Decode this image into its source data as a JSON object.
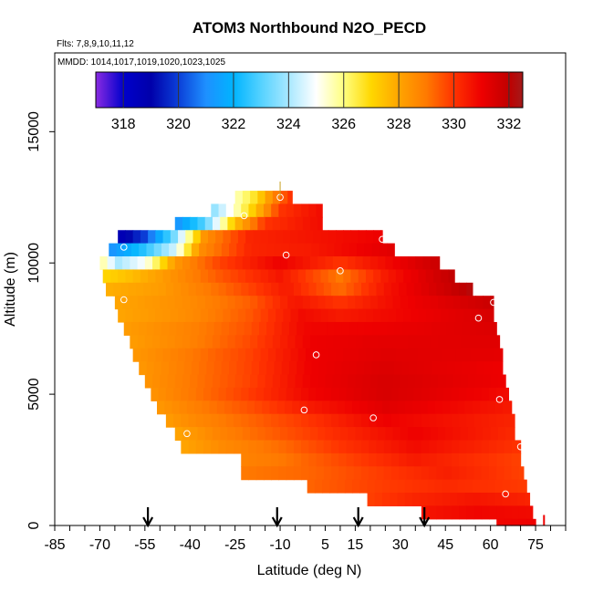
{
  "chart_data": {
    "type": "heatmap",
    "title": "ATOM3 Northbound N2O_PECD",
    "subtitle_flights": "Flts: 7,8,9,10,11,12",
    "subtitle_dates": "MMDD: 1014,1017,1019,1020,1023,1025",
    "xlabel": "Latitude (deg N)",
    "ylabel": "Altitude (m)",
    "xlim": [
      -85,
      85
    ],
    "ylim": [
      0,
      18000
    ],
    "x_ticks": [
      "-85",
      "-70",
      "-55",
      "-40",
      "-25",
      "-10",
      "5",
      "15",
      "30",
      "45",
      "60",
      "75"
    ],
    "x_tick_values": [
      -85,
      -70,
      -55,
      -40,
      -25,
      -10,
      5,
      15,
      30,
      45,
      60,
      75
    ],
    "x_minor_step": 5,
    "y_ticks": [
      "0",
      "5000",
      "10000",
      "15000"
    ],
    "y_tick_values": [
      0,
      5000,
      10000,
      15000
    ],
    "colorbar": {
      "range": [
        317,
        332.5
      ],
      "labels": [
        "318",
        "320",
        "322",
        "324",
        "326",
        "328",
        "330",
        "332"
      ],
      "label_values": [
        318,
        320,
        322,
        324,
        326,
        328,
        330,
        332
      ],
      "stops": [
        {
          "v": 317.0,
          "c": "#8a2be2"
        },
        {
          "v": 318.0,
          "c": "#0000cc"
        },
        {
          "v": 319.0,
          "c": "#0000aa"
        },
        {
          "v": 320.0,
          "c": "#0b3fd8"
        },
        {
          "v": 321.0,
          "c": "#1e90ff"
        },
        {
          "v": 322.0,
          "c": "#00b4ff"
        },
        {
          "v": 323.0,
          "c": "#55d2ff"
        },
        {
          "v": 324.0,
          "c": "#a8e8ff"
        },
        {
          "v": 325.0,
          "c": "#ffffff"
        },
        {
          "v": 326.0,
          "c": "#ffff80"
        },
        {
          "v": 327.0,
          "c": "#ffd700"
        },
        {
          "v": 328.0,
          "c": "#ffa500"
        },
        {
          "v": 329.0,
          "c": "#ff7a00"
        },
        {
          "v": 330.0,
          "c": "#ff3300"
        },
        {
          "v": 331.0,
          "c": "#ee0000"
        },
        {
          "v": 332.0,
          "c": "#c00000"
        },
        {
          "v": 332.5,
          "c": "#a31a1a"
        }
      ]
    },
    "marker_latitudes": [
      -54,
      -11,
      16,
      38
    ],
    "sample_points": [
      {
        "lat": -62,
        "alt": 10600
      },
      {
        "lat": -62,
        "alt": 8600
      },
      {
        "lat": -41,
        "alt": 3500
      },
      {
        "lat": -22,
        "alt": 11800
      },
      {
        "lat": -10,
        "alt": 12500
      },
      {
        "lat": -8,
        "alt": 10300
      },
      {
        "lat": -2,
        "alt": 4400
      },
      {
        "lat": 2,
        "alt": 6500
      },
      {
        "lat": 10,
        "alt": 9700
      },
      {
        "lat": 21,
        "alt": 4100
      },
      {
        "lat": 24,
        "alt": 10900
      },
      {
        "lat": 56,
        "alt": 7900
      },
      {
        "lat": 61,
        "alt": 8500
      },
      {
        "lat": 63,
        "alt": 4800
      },
      {
        "lat": 65,
        "alt": 1200
      },
      {
        "lat": 70,
        "alt": 3000
      }
    ],
    "curtain_rows": [
      {
        "alt_lo": 12250,
        "alt_hi": 12750,
        "lat_lo": -25,
        "lat_hi": -6,
        "profile": [
          [
            -25,
            325.5
          ],
          [
            -18,
            326.8
          ],
          [
            -12,
            328.8
          ],
          [
            -6,
            330.2
          ]
        ]
      },
      {
        "alt_lo": 11750,
        "alt_hi": 12250,
        "lat_lo": -33,
        "lat_hi": 4,
        "profile": [
          [
            -33,
            323.5
          ],
          [
            -26,
            325.2
          ],
          [
            -18,
            327.5
          ],
          [
            -10,
            330.0
          ],
          [
            4,
            330.8
          ]
        ]
      },
      {
        "alt_lo": 11250,
        "alt_hi": 11750,
        "lat_lo": -45,
        "lat_hi": 4,
        "profile": [
          [
            -45,
            321.0
          ],
          [
            -35,
            323.0
          ],
          [
            -25,
            327.5
          ],
          [
            -15,
            330.0
          ],
          [
            4,
            330.8
          ]
        ]
      },
      {
        "alt_lo": 10750,
        "alt_hi": 11250,
        "lat_lo": -64,
        "lat_hi": 24,
        "profile": [
          [
            -64,
            318.5
          ],
          [
            -55,
            320.0
          ],
          [
            -45,
            323.5
          ],
          [
            -35,
            328.5
          ],
          [
            -20,
            330.3
          ],
          [
            24,
            331.0
          ]
        ]
      },
      {
        "alt_lo": 10250,
        "alt_hi": 10750,
        "lat_lo": -67,
        "lat_hi": 28,
        "profile": [
          [
            -67,
            321.0
          ],
          [
            -55,
            322.5
          ],
          [
            -45,
            324.5
          ],
          [
            -37,
            328.5
          ],
          [
            -20,
            330.3
          ],
          [
            0,
            330.5
          ],
          [
            28,
            331.3
          ]
        ]
      },
      {
        "alt_lo": 9750,
        "alt_hi": 10250,
        "lat_lo": -70,
        "lat_hi": 43,
        "profile": [
          [
            -70,
            326.0
          ],
          [
            -64,
            324.0
          ],
          [
            -55,
            325.0
          ],
          [
            -45,
            328.3
          ],
          [
            -30,
            329.8
          ],
          [
            -10,
            331.0
          ],
          [
            10,
            330.0
          ],
          [
            25,
            330.8
          ],
          [
            43,
            331.8
          ]
        ]
      },
      {
        "alt_lo": 9250,
        "alt_hi": 9750,
        "lat_lo": -69,
        "lat_hi": 48,
        "profile": [
          [
            -69,
            327.0
          ],
          [
            -60,
            327.5
          ],
          [
            -45,
            328.5
          ],
          [
            -30,
            329.5
          ],
          [
            -10,
            330.6
          ],
          [
            10,
            329.0
          ],
          [
            25,
            330.5
          ],
          [
            48,
            332.0
          ]
        ]
      },
      {
        "alt_lo": 8750,
        "alt_hi": 9250,
        "lat_lo": -68,
        "lat_hi": 54,
        "profile": [
          [
            -68,
            327.8
          ],
          [
            -50,
            328.2
          ],
          [
            -30,
            329.2
          ],
          [
            -8,
            330.5
          ],
          [
            10,
            329.2
          ],
          [
            25,
            330.6
          ],
          [
            54,
            332.2
          ]
        ]
      },
      {
        "alt_lo": 8250,
        "alt_hi": 8750,
        "lat_lo": -65,
        "lat_hi": 61,
        "profile": [
          [
            -65,
            328.0
          ],
          [
            -40,
            328.6
          ],
          [
            -20,
            329.4
          ],
          [
            -5,
            330.6
          ],
          [
            10,
            330.0
          ],
          [
            30,
            330.9
          ],
          [
            61,
            331.8
          ]
        ]
      },
      {
        "alt_lo": 7750,
        "alt_hi": 8250,
        "lat_lo": -64,
        "lat_hi": 61,
        "profile": [
          [
            -64,
            328.0
          ],
          [
            -40,
            328.6
          ],
          [
            -20,
            329.5
          ],
          [
            -3,
            330.8
          ],
          [
            10,
            330.5
          ],
          [
            35,
            331.0
          ],
          [
            61,
            331.5
          ]
        ]
      },
      {
        "alt_lo": 7250,
        "alt_hi": 7750,
        "lat_lo": -62,
        "lat_hi": 62,
        "profile": [
          [
            -62,
            328.2
          ],
          [
            -40,
            328.8
          ],
          [
            -20,
            329.6
          ],
          [
            -2,
            330.9
          ],
          [
            20,
            331.0
          ],
          [
            62,
            331.4
          ]
        ]
      },
      {
        "alt_lo": 6750,
        "alt_hi": 7250,
        "lat_lo": -60,
        "lat_hi": 63,
        "profile": [
          [
            -60,
            328.2
          ],
          [
            -40,
            328.8
          ],
          [
            -20,
            329.7
          ],
          [
            0,
            331.0
          ],
          [
            20,
            331.2
          ],
          [
            63,
            331.3
          ]
        ]
      },
      {
        "alt_lo": 6250,
        "alt_hi": 6750,
        "lat_lo": -59,
        "lat_hi": 64,
        "profile": [
          [
            -59,
            328.3
          ],
          [
            -40,
            329.0
          ],
          [
            -20,
            329.8
          ],
          [
            0,
            331.0
          ],
          [
            25,
            331.3
          ],
          [
            64,
            331.2
          ]
        ]
      },
      {
        "alt_lo": 5750,
        "alt_hi": 6250,
        "lat_lo": -57,
        "lat_hi": 64,
        "profile": [
          [
            -57,
            328.3
          ],
          [
            -40,
            329.0
          ],
          [
            -20,
            329.8
          ],
          [
            0,
            331.0
          ],
          [
            25,
            331.4
          ],
          [
            64,
            331.0
          ]
        ]
      },
      {
        "alt_lo": 5250,
        "alt_hi": 5750,
        "lat_lo": -55,
        "lat_hi": 65,
        "profile": [
          [
            -55,
            328.4
          ],
          [
            -40,
            329.0
          ],
          [
            -20,
            329.8
          ],
          [
            0,
            331.0
          ],
          [
            25,
            331.5
          ],
          [
            65,
            331.0
          ]
        ]
      },
      {
        "alt_lo": 4750,
        "alt_hi": 5250,
        "lat_lo": -53,
        "lat_hi": 66,
        "profile": [
          [
            -53,
            328.4
          ],
          [
            -40,
            329.0
          ],
          [
            -20,
            329.9
          ],
          [
            0,
            330.9
          ],
          [
            25,
            331.5
          ],
          [
            66,
            330.8
          ]
        ]
      },
      {
        "alt_lo": 4250,
        "alt_hi": 4750,
        "lat_lo": -51,
        "lat_hi": 67,
        "profile": [
          [
            -51,
            328.3
          ],
          [
            -40,
            328.8
          ],
          [
            -20,
            329.6
          ],
          [
            0,
            330.5
          ],
          [
            25,
            331.3
          ],
          [
            67,
            330.5
          ]
        ]
      },
      {
        "alt_lo": 3750,
        "alt_hi": 4250,
        "lat_lo": -48,
        "lat_hi": 68,
        "profile": [
          [
            -48,
            328.2
          ],
          [
            -40,
            328.6
          ],
          [
            -20,
            329.3
          ],
          [
            0,
            330.0
          ],
          [
            25,
            331.0
          ],
          [
            68,
            330.3
          ]
        ]
      },
      {
        "alt_lo": 3250,
        "alt_hi": 3750,
        "lat_lo": -45,
        "lat_hi": 68,
        "profile": [
          [
            -45,
            328.0
          ],
          [
            -30,
            328.8
          ],
          [
            -10,
            329.5
          ],
          [
            10,
            330.2
          ],
          [
            35,
            331.0
          ],
          [
            68,
            330.2
          ]
        ]
      },
      {
        "alt_lo": 2750,
        "alt_hi": 3250,
        "lat_lo": -43,
        "lat_hi": 70,
        "profile": [
          [
            -43,
            328.0
          ],
          [
            -30,
            328.6
          ],
          [
            -10,
            329.2
          ],
          [
            10,
            330.0
          ],
          [
            35,
            330.8
          ],
          [
            70,
            330.0
          ]
        ]
      },
      {
        "alt_lo": 2250,
        "alt_hi": 2750,
        "lat_lo": -23,
        "lat_hi": 70,
        "profile": [
          [
            -23,
            328.8
          ],
          [
            -10,
            329.0
          ],
          [
            10,
            329.7
          ],
          [
            35,
            330.5
          ],
          [
            70,
            329.8
          ]
        ]
      },
      {
        "alt_lo": 1750,
        "alt_hi": 2250,
        "lat_lo": -23,
        "lat_hi": 71,
        "profile": [
          [
            -23,
            329.0
          ],
          [
            0,
            329.3
          ],
          [
            20,
            329.8
          ],
          [
            45,
            330.4
          ],
          [
            71,
            329.8
          ]
        ]
      },
      {
        "alt_lo": 1250,
        "alt_hi": 1750,
        "lat_lo": -1,
        "lat_hi": 72,
        "profile": [
          [
            -1,
            329.3
          ],
          [
            20,
            329.8
          ],
          [
            45,
            330.2
          ],
          [
            72,
            329.9
          ]
        ]
      },
      {
        "alt_lo": 750,
        "alt_hi": 1250,
        "lat_lo": 19,
        "lat_hi": 73,
        "profile": [
          [
            19,
            329.8
          ],
          [
            35,
            330.3
          ],
          [
            55,
            330.6
          ],
          [
            73,
            330.3
          ]
        ]
      },
      {
        "alt_lo": 250,
        "alt_hi": 750,
        "lat_lo": 37,
        "lat_hi": 74,
        "profile": [
          [
            37,
            330.6
          ],
          [
            55,
            330.9
          ],
          [
            74,
            330.8
          ]
        ]
      },
      {
        "alt_lo": 0,
        "alt_hi": 250,
        "lat_lo": 62,
        "lat_hi": 75,
        "profile": [
          [
            62,
            330.9
          ],
          [
            75,
            331.0
          ]
        ]
      }
    ]
  }
}
